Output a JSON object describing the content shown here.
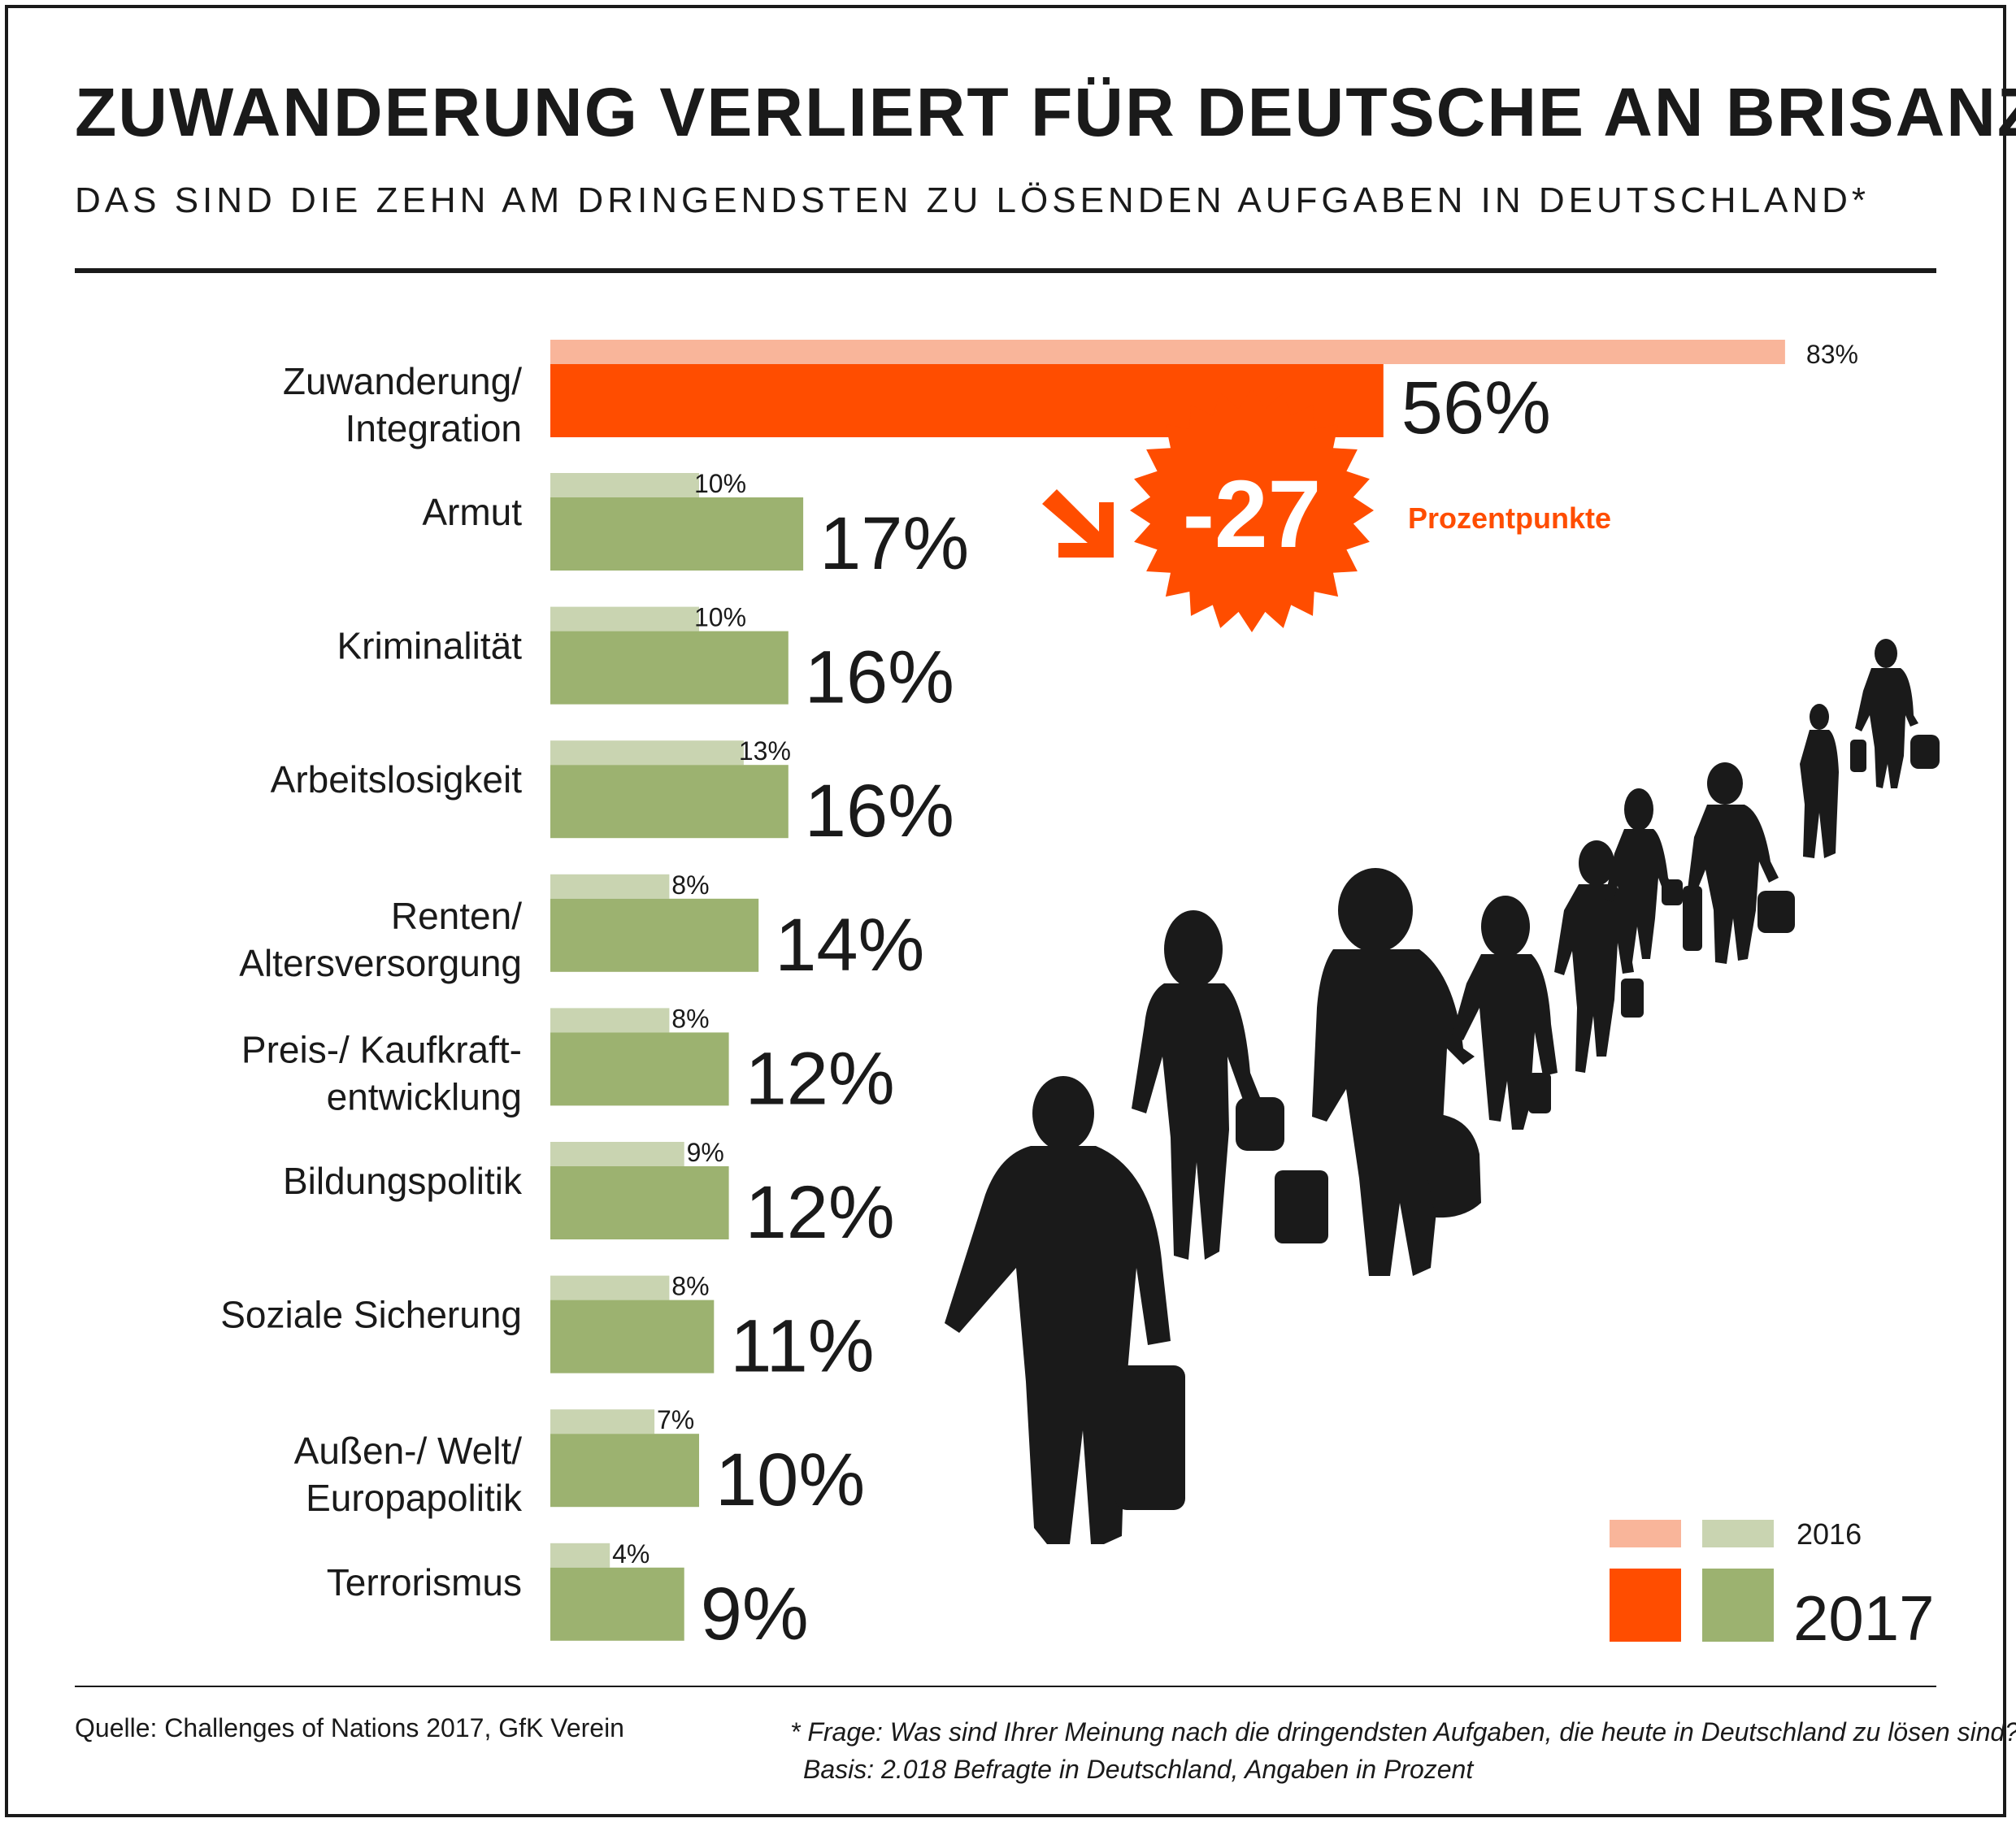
{
  "title": "ZUWANDERUNG VERLIERT FÜR DEUTSCHE AN BRISANZ",
  "subtitle": "DAS SIND DIE ZEHN AM DRINGENDSTEN ZU LÖSENDEN AUFGABEN IN DEUTSCHLAND*",
  "colors": {
    "highlight_2017": "#ff4d00",
    "highlight_2016": "#f9b59a",
    "bar_2017": "#9cb270",
    "bar_2016": "#c9d4b1",
    "silhouettes": "#1a1a1a"
  },
  "chart_data": {
    "type": "bar",
    "orientation": "horizontal",
    "categories": [
      [
        "Zuwanderung/",
        "Integration"
      ],
      [
        "Armut"
      ],
      [
        "Kriminalität"
      ],
      [
        "Arbeitslosigkeit"
      ],
      [
        "Renten/",
        "Altersversorgung"
      ],
      [
        "Preis-/ Kaufkraft-",
        "entwicklung"
      ],
      [
        "Bildungspolitik"
      ],
      [
        "Soziale Sicherung"
      ],
      [
        "Außen-/ Welt/",
        "Europapolitik"
      ],
      [
        "Terrorismus"
      ]
    ],
    "series": [
      {
        "name": "2016",
        "values": [
          83,
          10,
          10,
          13,
          8,
          8,
          9,
          8,
          7,
          4
        ],
        "labels": [
          "83%",
          "10%",
          "10%",
          "13%",
          "8%",
          "8%",
          "9%",
          "8%",
          "7%",
          "4%"
        ]
      },
      {
        "name": "2017",
        "values": [
          56,
          17,
          16,
          16,
          14,
          12,
          12,
          11,
          10,
          9
        ],
        "labels": [
          "56%",
          "17%",
          "16%",
          "16%",
          "14%",
          "12%",
          "12%",
          "11%",
          "10%",
          "9%"
        ]
      }
    ],
    "annotation": {
      "value": "-27",
      "text": "Prozentpunkte"
    },
    "legend": {
      "position": "bottom-right",
      "labels": [
        "2016",
        "2017"
      ]
    },
    "grid": false
  },
  "source": "Quelle: Challenges of Nations 2017, GfK Verein",
  "footnote": [
    "* Frage: Was sind Ihrer Meinung nach die dringendsten Aufgaben, die heute in Deutschland zu lösen sind?",
    "Basis: 2.018 Befragte in Deutschland, Angaben in Prozent"
  ]
}
